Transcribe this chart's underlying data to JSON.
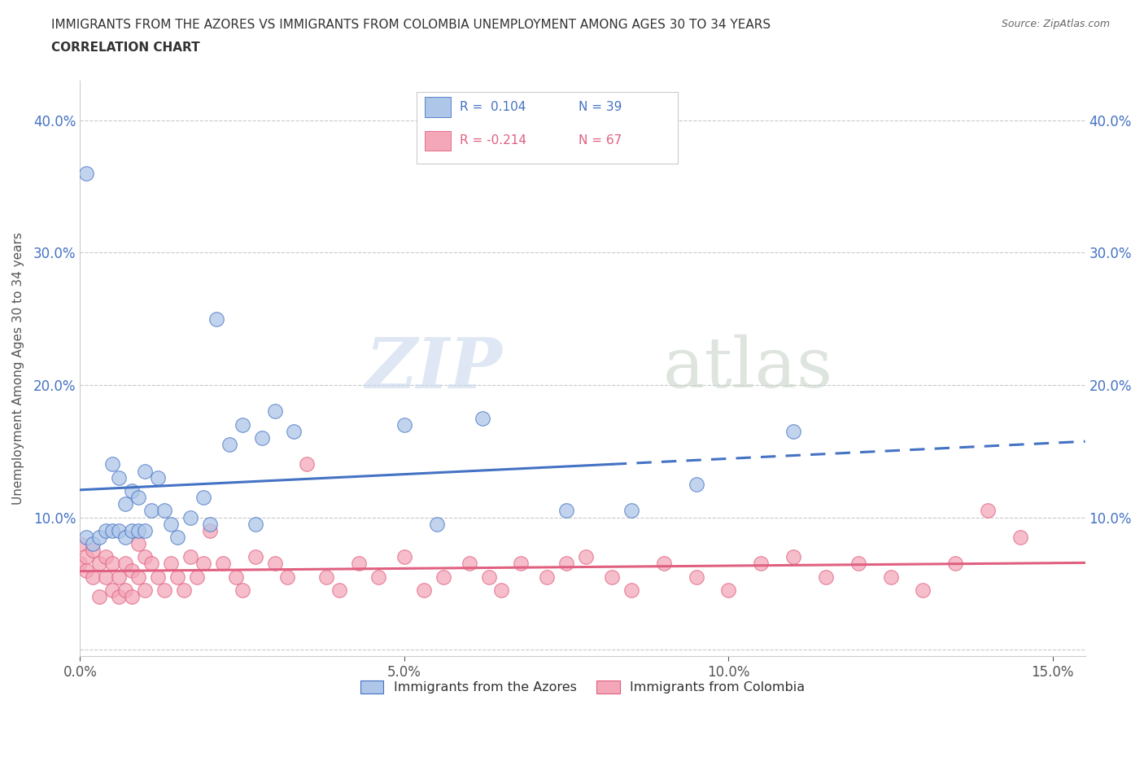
{
  "title_line1": "IMMIGRANTS FROM THE AZORES VS IMMIGRANTS FROM COLOMBIA UNEMPLOYMENT AMONG AGES 30 TO 34 YEARS",
  "title_line2": "CORRELATION CHART",
  "source": "Source: ZipAtlas.com",
  "ylabel": "Unemployment Among Ages 30 to 34 years",
  "xlim": [
    0.0,
    0.155
  ],
  "ylim": [
    -0.005,
    0.43
  ],
  "xticks": [
    0.0,
    0.05,
    0.1,
    0.15
  ],
  "xtick_labels": [
    "0.0%",
    "5.0%",
    "10.0%",
    "15.0%"
  ],
  "yticks": [
    0.0,
    0.1,
    0.2,
    0.3,
    0.4
  ],
  "ytick_labels": [
    "",
    "10.0%",
    "20.0%",
    "30.0%",
    "40.0%"
  ],
  "legend_entries": [
    {
      "label": "Immigrants from the Azores",
      "color": "#aec6e8",
      "edge": "#4472c4",
      "R": "0.104",
      "N": "39"
    },
    {
      "label": "Immigrants from Colombia",
      "color": "#f4a7b9",
      "edge": "#e06080",
      "R": "-0.214",
      "N": "67"
    }
  ],
  "azores_x": [
    0.001,
    0.001,
    0.002,
    0.003,
    0.004,
    0.005,
    0.005,
    0.006,
    0.006,
    0.007,
    0.007,
    0.008,
    0.008,
    0.009,
    0.009,
    0.01,
    0.01,
    0.011,
    0.012,
    0.013,
    0.014,
    0.015,
    0.017,
    0.019,
    0.02,
    0.021,
    0.023,
    0.025,
    0.027,
    0.028,
    0.03,
    0.033,
    0.05,
    0.055,
    0.062,
    0.075,
    0.085,
    0.095,
    0.11
  ],
  "azores_y": [
    0.085,
    0.36,
    0.08,
    0.085,
    0.09,
    0.09,
    0.14,
    0.13,
    0.09,
    0.11,
    0.085,
    0.12,
    0.09,
    0.115,
    0.09,
    0.135,
    0.09,
    0.105,
    0.13,
    0.105,
    0.095,
    0.085,
    0.1,
    0.115,
    0.095,
    0.25,
    0.155,
    0.17,
    0.095,
    0.16,
    0.18,
    0.165,
    0.17,
    0.095,
    0.175,
    0.105,
    0.105,
    0.125,
    0.165
  ],
  "colombia_x": [
    0.0,
    0.0,
    0.001,
    0.001,
    0.002,
    0.002,
    0.003,
    0.003,
    0.004,
    0.004,
    0.005,
    0.005,
    0.006,
    0.006,
    0.007,
    0.007,
    0.008,
    0.008,
    0.009,
    0.009,
    0.01,
    0.01,
    0.011,
    0.012,
    0.013,
    0.014,
    0.015,
    0.016,
    0.017,
    0.018,
    0.019,
    0.02,
    0.022,
    0.024,
    0.025,
    0.027,
    0.03,
    0.032,
    0.035,
    0.038,
    0.04,
    0.043,
    0.046,
    0.05,
    0.053,
    0.056,
    0.06,
    0.063,
    0.065,
    0.068,
    0.072,
    0.075,
    0.078,
    0.082,
    0.085,
    0.09,
    0.095,
    0.1,
    0.105,
    0.11,
    0.115,
    0.12,
    0.125,
    0.13,
    0.135,
    0.14,
    0.145
  ],
  "colombia_y": [
    0.065,
    0.08,
    0.07,
    0.06,
    0.055,
    0.075,
    0.04,
    0.065,
    0.055,
    0.07,
    0.045,
    0.065,
    0.04,
    0.055,
    0.045,
    0.065,
    0.04,
    0.06,
    0.055,
    0.08,
    0.045,
    0.07,
    0.065,
    0.055,
    0.045,
    0.065,
    0.055,
    0.045,
    0.07,
    0.055,
    0.065,
    0.09,
    0.065,
    0.055,
    0.045,
    0.07,
    0.065,
    0.055,
    0.14,
    0.055,
    0.045,
    0.065,
    0.055,
    0.07,
    0.045,
    0.055,
    0.065,
    0.055,
    0.045,
    0.065,
    0.055,
    0.065,
    0.07,
    0.055,
    0.045,
    0.065,
    0.055,
    0.045,
    0.065,
    0.07,
    0.055,
    0.065,
    0.055,
    0.045,
    0.065,
    0.105,
    0.085
  ],
  "azores_line_color": "#4472c4",
  "colombia_line_color": "#e06080",
  "azores_scatter_color": "#aec6e8",
  "colombia_scatter_color": "#f4a7b9",
  "azores_trend_start": 0.0,
  "azores_trend_solid_end": 0.082,
  "azores_trend_end": 0.155,
  "watermark_zip": "ZIP",
  "watermark_atlas": "atlas",
  "background_color": "#ffffff",
  "grid_color": "#bbbbbb"
}
